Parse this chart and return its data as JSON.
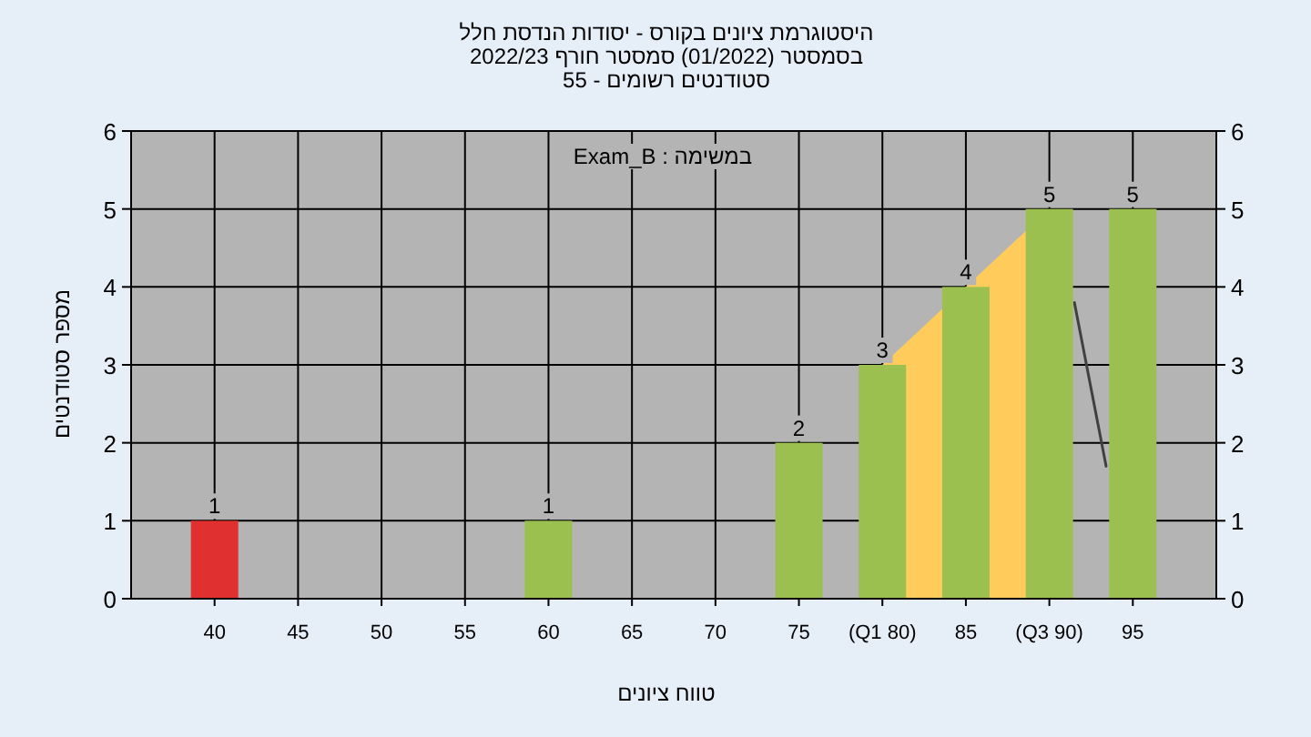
{
  "chart_data": {
    "type": "bar",
    "title": "היסטוגרמת ציונים בקורס - יסודות הנדסת חלל",
    "subtitle": "בסמסטר  (01/2022)  סמסטר חורף 2022/23",
    "annotations": [
      "סטודנטים רשומים - 55",
      "במשימה : Exam_B"
    ],
    "xlabel": "טווח ציונים",
    "ylabel": "מספר סטודנטים",
    "x": [
      40,
      60,
      75,
      80,
      85,
      90,
      95
    ],
    "series": [
      {
        "type": "area",
        "x": [
          80,
          85,
          90
        ],
        "values": [
          3,
          4,
          5
        ],
        "color": "#ffcc5c"
      },
      {
        "type": "line",
        "x": [
          91.5,
          93.4
        ],
        "values": [
          3.8,
          1.7
        ],
        "color": "#404040"
      },
      {
        "type": "bar",
        "values": [
          1,
          1,
          2,
          3,
          4,
          5,
          5
        ],
        "colors": [
          "#e03030",
          "#9cc050",
          "#9cc050",
          "#9cc050",
          "#9cc050",
          "#9cc050",
          "#9cc050"
        ],
        "data_labels": true
      }
    ],
    "grid": true,
    "xlim": [
      35,
      100
    ],
    "xticks": [
      40,
      45,
      50,
      55,
      60,
      65,
      70,
      75,
      {
        "value": 80,
        "label": "(Q1 80)"
      },
      85,
      {
        "value": 90,
        "label": "(Q3 90)"
      },
      95
    ],
    "ylim": [
      0,
      6
    ],
    "yticks": [
      0,
      1,
      2,
      3,
      4,
      5,
      6
    ],
    "y2lim": [
      0,
      6
    ],
    "y2ticks": [
      0,
      1,
      2,
      3,
      4,
      5,
      6
    ]
  }
}
